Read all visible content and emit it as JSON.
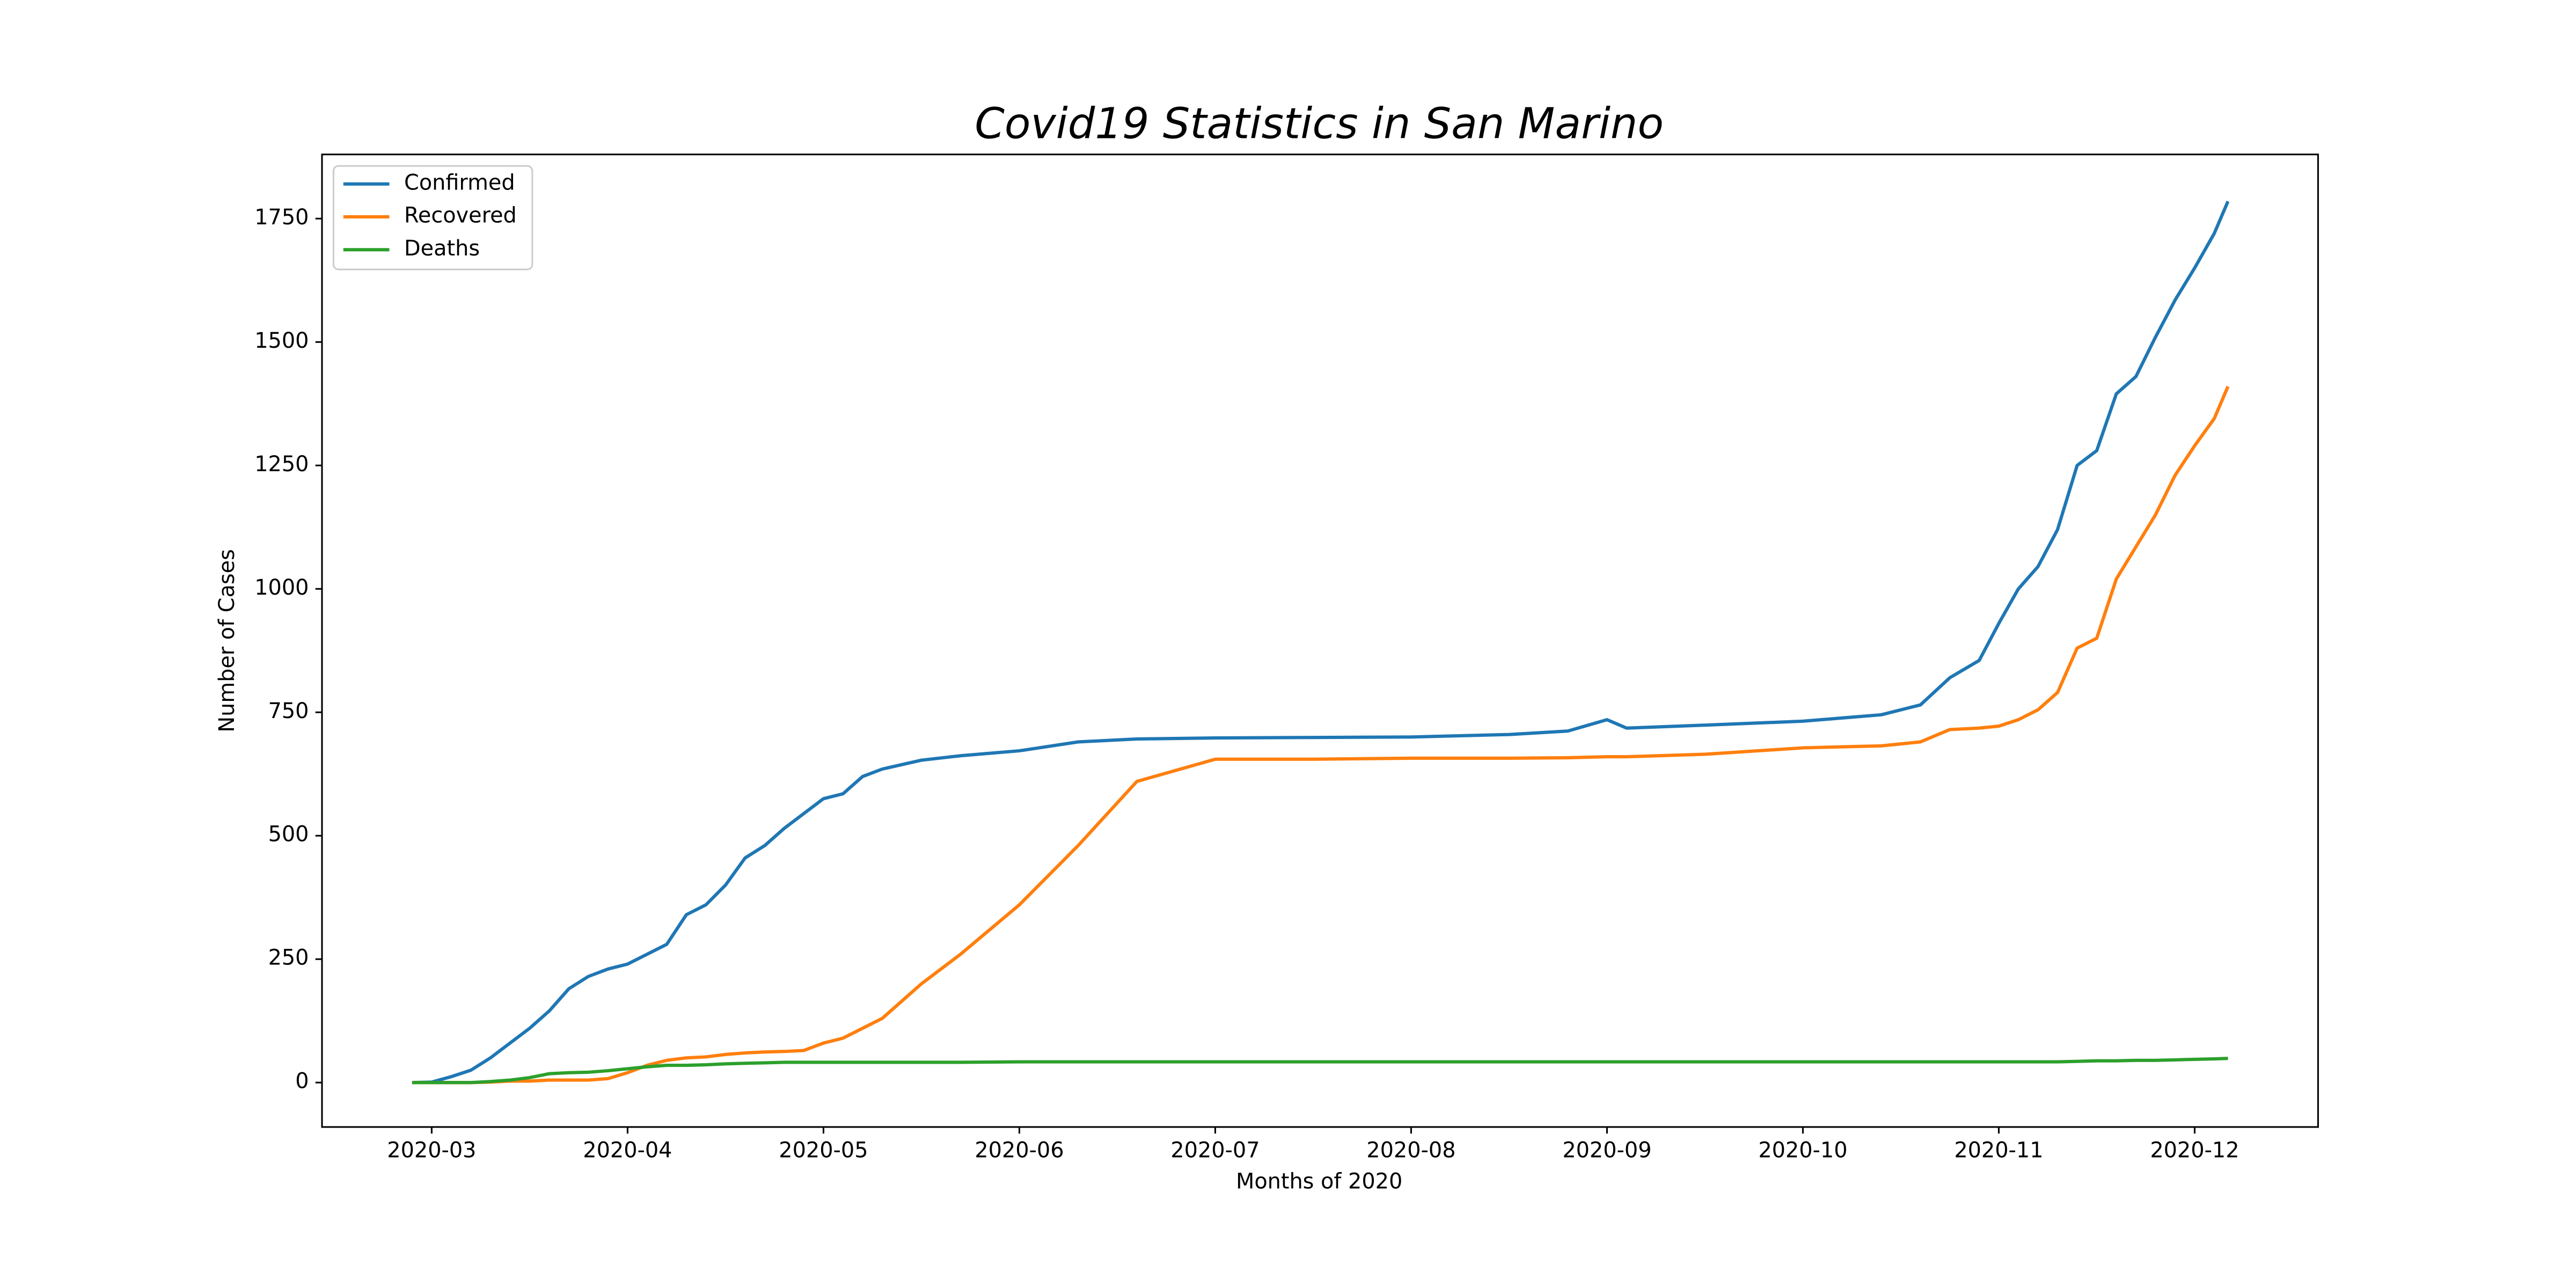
{
  "chart_data": {
    "type": "line",
    "title": "Covid19 Statistics in San Marino",
    "x_label": "Months of 2020",
    "y_label": "Number of Cases",
    "x": [
      2.9,
      3.0,
      3.1,
      3.2,
      3.3,
      3.4,
      3.5,
      3.6,
      3.7,
      3.8,
      3.9,
      4.0,
      4.1,
      4.2,
      4.3,
      4.4,
      4.5,
      4.6,
      4.7,
      4.8,
      4.9,
      5.0,
      5.1,
      5.2,
      5.3,
      5.5,
      5.7,
      6.0,
      6.3,
      6.6,
      7.0,
      7.5,
      8.0,
      8.5,
      8.8,
      9.0,
      9.1,
      9.5,
      10.0,
      10.4,
      10.6,
      10.75,
      10.9,
      11.0,
      11.1,
      11.2,
      11.3,
      11.4,
      11.5,
      11.6,
      11.7,
      11.8,
      11.9,
      12.0,
      12.1,
      12.17
    ],
    "series": [
      {
        "name": "Confirmed",
        "color": "#1f77b4",
        "values": [
          0,
          1,
          12,
          25,
          50,
          80,
          110,
          145,
          190,
          215,
          230,
          240,
          260,
          280,
          340,
          360,
          400,
          455,
          480,
          515,
          545,
          575,
          585,
          620,
          635,
          653,
          662,
          672,
          690,
          696,
          698,
          699,
          700,
          705,
          712,
          735,
          718,
          724,
          732,
          745,
          765,
          820,
          855,
          930,
          1000,
          1045,
          1120,
          1250,
          1280,
          1395,
          1430,
          1510,
          1585,
          1650,
          1720,
          1785
        ]
      },
      {
        "name": "Recovered",
        "color": "#ff7f0e",
        "values": [
          0,
          0,
          0,
          0,
          1,
          3,
          3,
          5,
          5,
          5,
          8,
          20,
          35,
          45,
          50,
          52,
          57,
          60,
          62,
          63,
          65,
          80,
          90,
          110,
          130,
          200,
          260,
          360,
          480,
          610,
          655,
          655,
          657,
          657,
          658,
          660,
          660,
          665,
          678,
          682,
          690,
          715,
          718,
          722,
          735,
          755,
          790,
          880,
          900,
          1020,
          1085,
          1150,
          1230,
          1290,
          1345,
          1410
        ]
      },
      {
        "name": "Deaths",
        "color": "#2ca02c",
        "values": [
          0,
          0,
          0,
          0,
          2,
          5,
          10,
          18,
          20,
          21,
          24,
          28,
          32,
          35,
          35,
          36,
          38,
          39,
          40,
          41,
          41,
          41,
          41,
          41,
          41,
          41,
          41,
          42,
          42,
          42,
          42,
          42,
          42,
          42,
          42,
          42,
          42,
          42,
          42,
          42,
          42,
          42,
          42,
          42,
          42,
          42,
          42,
          43,
          44,
          44,
          45,
          45,
          46,
          47,
          48,
          49
        ]
      }
    ],
    "xlim": [
      2.44,
      12.63
    ],
    "xticks": [
      {
        "value": 3,
        "label": "2020-03"
      },
      {
        "value": 4,
        "label": "2020-04"
      },
      {
        "value": 5,
        "label": "2020-05"
      },
      {
        "value": 6,
        "label": "2020-06"
      },
      {
        "value": 7,
        "label": "2020-07"
      },
      {
        "value": 8,
        "label": "2020-08"
      },
      {
        "value": 9,
        "label": "2020-09"
      },
      {
        "value": 10,
        "label": "2020-10"
      },
      {
        "value": 11,
        "label": "2020-11"
      },
      {
        "value": 12,
        "label": "2020-12"
      }
    ],
    "ylim": [
      -90,
      1880
    ],
    "yticks": [
      0,
      250,
      500,
      750,
      1000,
      1250,
      1500,
      1750
    ],
    "legend": "upper left",
    "grid": false
  }
}
